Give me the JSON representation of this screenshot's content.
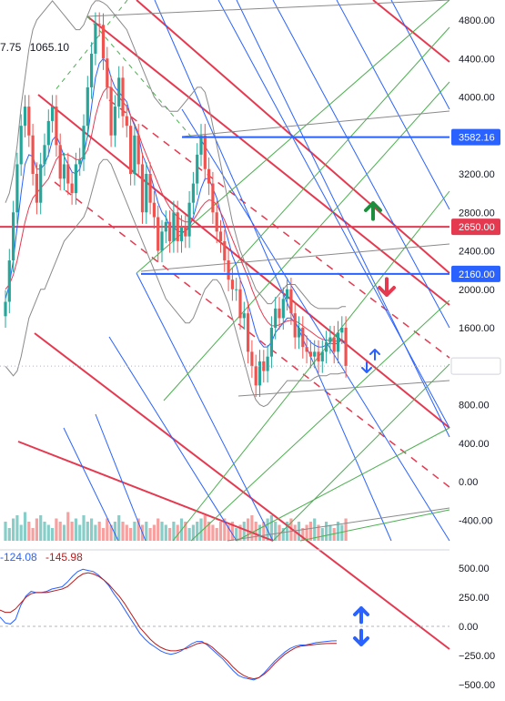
{
  "header": {
    "ohlc_partial": "7.75",
    "ohlc_value": "1065.10"
  },
  "oscillator": {
    "value_a": "-124.08",
    "value_b": "-145.98",
    "color_a": "#2962ff",
    "color_b": "#b71c1c"
  },
  "colors": {
    "up": "#26a69a",
    "down": "#ef5350",
    "red_line": "#e53950",
    "blue_line": "#2962ff",
    "green_line": "#4caf50",
    "gray_line": "#8a8a8a",
    "arrow_up": "#1e8e3e",
    "arrow_down": "#e53950"
  },
  "price_axis": {
    "ticks": [
      4800,
      4400,
      4000,
      3600,
      3200,
      2800,
      2400,
      2000,
      1600,
      1200,
      800,
      400,
      0,
      -400
    ],
    "labels": [
      "4800.00",
      "4400.00",
      "4000.00",
      "3600.00",
      "3200.00",
      "2800.00",
      "2400.00",
      "2000.00",
      "1600.00",
      "1200.00",
      "800.00",
      "400.00",
      "0.00",
      "-400.00"
    ]
  },
  "osc_axis": {
    "ticks": [
      500,
      250,
      0,
      -250,
      -500
    ],
    "labels": [
      "500.00",
      "250.00",
      "0.00",
      "−250.00",
      "−500.00"
    ]
  },
  "level_labels": [
    {
      "value": 3582.16,
      "label": "3582.16",
      "color": "#2962ff"
    },
    {
      "value": 2650,
      "label": "2650.00",
      "color": "#e53950"
    },
    {
      "value": 2160,
      "label": "2160.00",
      "color": "#2962ff"
    },
    {
      "value": 1201.1,
      "label": "1201.10",
      "color": "#ffffff",
      "text_color": "#131722"
    }
  ],
  "chart_data": {
    "type": "candlestick",
    "price_range": [
      -600,
      5020
    ],
    "osc_range": [
      -580,
      620
    ],
    "close_series": [
      1870,
      2300,
      2800,
      3300,
      3700,
      3900,
      3600,
      3200,
      2900,
      3300,
      3500,
      3750,
      3900,
      3500,
      3150,
      3300,
      3100,
      3000,
      3300,
      3350,
      3700,
      4100,
      4450,
      4760,
      4750,
      4400,
      4100,
      3600,
      3900,
      4200,
      3800,
      3700,
      3200,
      3600,
      3300,
      2800,
      3200,
      2900,
      2750,
      2400,
      2600,
      2700,
      2500,
      2800,
      2500,
      2650,
      2550,
      2900,
      3100,
      3400,
      3600,
      3250,
      3100,
      2800,
      2600,
      2500,
      2300,
      2100,
      2000,
      2000,
      1700,
      1750,
      1350,
      1200,
      1000,
      1250,
      1150,
      1300,
      1600,
      1800,
      1700,
      1900,
      2000,
      1750,
      1500,
      1600,
      1400,
      1350,
      1300,
      1350,
      1250,
      1350,
      1450,
      1500,
      1350,
      1550,
      1600,
      1201
    ],
    "overlay_series": [
      {
        "name": "",
        "color": "#2962ff",
        "values": [
          1900,
          2050,
          2300,
          2650,
          3000,
          3300,
          3400,
          3380,
          3250,
          3250,
          3300,
          3400,
          3550,
          3600,
          3500,
          3380,
          3300,
          3220,
          3200,
          3250,
          3400,
          3600,
          3900,
          4200,
          4350,
          4400,
          4350,
          4200,
          4100,
          4050,
          4000,
          3950,
          3800,
          3700,
          3600,
          3400,
          3300,
          3200,
          3050,
          2900,
          2800,
          2750,
          2650,
          2650,
          2600,
          2600,
          2600,
          2650,
          2750,
          2900,
          3050,
          3150,
          3150,
          3050,
          2950,
          2800,
          2650,
          2500,
          2350,
          2250,
          2100,
          2000,
          1850,
          1700,
          1550,
          1450,
          1400,
          1400,
          1450,
          1550,
          1600,
          1650,
          1700,
          1700,
          1650,
          1600,
          1550,
          1500,
          1450,
          1420,
          1400,
          1400,
          1420,
          1440,
          1430,
          1440,
          1480,
          1420
        ]
      },
      {
        "name": "",
        "color": "#e53950",
        "values": [
          2000,
          2050,
          2150,
          2300,
          2500,
          2700,
          2850,
          2950,
          3000,
          3050,
          3100,
          3150,
          3250,
          3350,
          3400,
          3400,
          3400,
          3380,
          3350,
          3350,
          3380,
          3450,
          3600,
          3800,
          3950,
          4050,
          4100,
          4100,
          4050,
          4000,
          3950,
          3900,
          3800,
          3720,
          3620,
          3500,
          3400,
          3300,
          3200,
          3100,
          3000,
          2920,
          2850,
          2800,
          2750,
          2720,
          2700,
          2700,
          2720,
          2780,
          2850,
          2900,
          2930,
          2920,
          2880,
          2800,
          2720,
          2620,
          2520,
          2420,
          2320,
          2220,
          2120,
          2000,
          1900,
          1800,
          1720,
          1660,
          1620,
          1620,
          1630,
          1650,
          1670,
          1680,
          1670,
          1650,
          1620,
          1590,
          1560,
          1530,
          1500,
          1480,
          1470,
          1470,
          1460,
          1460,
          1470,
          1450
        ]
      }
    ],
    "bands_upper": [
      2900,
      3000,
      3200,
      3500,
      3900,
      4200,
      4500,
      4700,
      4800,
      4850,
      4900,
      4950,
      5000,
      4950,
      4900,
      4850,
      4800,
      4750,
      4700,
      4700,
      4750,
      4850,
      4950,
      5000,
      5000,
      4980,
      4950,
      4900,
      4850,
      4800,
      4750,
      4700,
      4600,
      4500,
      4400,
      4300,
      4200,
      4100,
      4000,
      3950,
      3900,
      3900,
      3850,
      3850,
      3850,
      3900,
      3950,
      4000,
      4050,
      4100,
      4100,
      4050,
      3900,
      3700,
      3500,
      3300,
      3100,
      2900,
      2700,
      2550,
      2400,
      2300,
      2200,
      2100,
      2000,
      1950,
      1900,
      1850,
      1850,
      1900,
      1950,
      2000,
      2050,
      2050,
      2050,
      2000,
      1950,
      1900,
      1850,
      1820,
      1800,
      1800,
      1800,
      1800,
      1800,
      1800,
      1820,
      1820
    ],
    "bands_lower": [
      1200,
      1150,
      1100,
      1150,
      1300,
      1500,
      1700,
      1800,
      1900,
      2000,
      2000,
      2100,
      2200,
      2300,
      2400,
      2500,
      2550,
      2600,
      2650,
      2700,
      2750,
      2850,
      3000,
      3150,
      3300,
      3350,
      3350,
      3300,
      3200,
      3100,
      3000,
      2900,
      2800,
      2700,
      2600,
      2500,
      2400,
      2300,
      2200,
      2100,
      2000,
      1900,
      1850,
      1800,
      1750,
      1700,
      1650,
      1650,
      1700,
      1800,
      1900,
      2000,
      2050,
      2100,
      2100,
      2050,
      1950,
      1850,
      1700,
      1550,
      1400,
      1250,
      1100,
      950,
      850,
      800,
      780,
      800,
      850,
      900,
      950,
      1000,
      1050,
      1050,
      1050,
      1050,
      1050,
      1050,
      1050,
      1080,
      1100,
      1100,
      1100,
      1120,
      1120,
      1120,
      1130,
      1130
    ],
    "volume": [
      30,
      20,
      35,
      40,
      25,
      45,
      30,
      20,
      35,
      40,
      30,
      25,
      20,
      35,
      30,
      25,
      45,
      30,
      35,
      25,
      40,
      30,
      35,
      25,
      30,
      20,
      35,
      25,
      30,
      40,
      30,
      25,
      20,
      30,
      35,
      25,
      30,
      20,
      25,
      35,
      30,
      25,
      20,
      30,
      25,
      35,
      30,
      20,
      25,
      30,
      35,
      40,
      30,
      25,
      20,
      30,
      35,
      25,
      30,
      20,
      25,
      30,
      35,
      40,
      30,
      25,
      30,
      35,
      40,
      30,
      25,
      20,
      30,
      35,
      25,
      30,
      20,
      25,
      30,
      35,
      25,
      20,
      30,
      25,
      20,
      30,
      25,
      35
    ],
    "osc_a": [
      80,
      30,
      20,
      60,
      180,
      260,
      300,
      290,
      290,
      300,
      320,
      330,
      340,
      380,
      430,
      470,
      490,
      480,
      470,
      440,
      400,
      350,
      280,
      220,
      150,
      80,
      10,
      -60,
      -110,
      -150,
      -180,
      -210,
      -230,
      -240,
      -230,
      -210,
      -180,
      -150,
      -130,
      -130,
      -160,
      -200,
      -240,
      -280,
      -330,
      -380,
      -420,
      -440,
      -450,
      -460,
      -440,
      -400,
      -350,
      -300,
      -260,
      -220,
      -190,
      -170,
      -160,
      -160,
      -150,
      -140,
      -135,
      -130,
      -125,
      -124
    ],
    "osc_b": [
      140,
      120,
      120,
      150,
      200,
      250,
      280,
      290,
      290,
      290,
      300,
      310,
      320,
      340,
      380,
      420,
      450,
      460,
      450,
      430,
      400,
      360,
      310,
      260,
      200,
      130,
      60,
      -10,
      -60,
      -110,
      -150,
      -180,
      -200,
      -210,
      -210,
      -200,
      -190,
      -170,
      -150,
      -140,
      -150,
      -180,
      -220,
      -260,
      -300,
      -350,
      -390,
      -420,
      -440,
      -450,
      -440,
      -410,
      -370,
      -320,
      -280,
      -240,
      -210,
      -185,
      -170,
      -165,
      -160,
      -155,
      -150,
      -148,
      -147,
      -146
    ],
    "horizontal_levels": [
      {
        "value": 3582.16,
        "color": "#2962ff"
      },
      {
        "value": 2650,
        "color": "#e53950"
      },
      {
        "value": 2160,
        "color": "#2962ff"
      }
    ]
  }
}
